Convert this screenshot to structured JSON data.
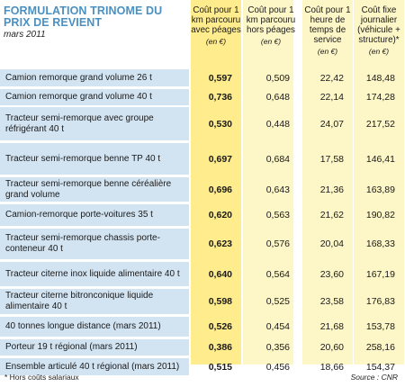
{
  "title": {
    "heading": "FORMULATION TRINOME DU PRIX DE REVIENT",
    "date": "mars 2011"
  },
  "columns": [
    {
      "label": "Coût pour 1 km parcouru avec péages",
      "unit": "(en €)"
    },
    {
      "label": "Coût pour 1 km parcouru hors péages",
      "unit": "(en €)"
    },
    {
      "label": "Coût pour 1 heure de temps de service",
      "unit": "(en €)"
    },
    {
      "label": "Coût fixe journalier (véhicule + structure)*",
      "unit": "(en €)"
    }
  ],
  "rows": [
    {
      "label": "Camion remorque grand volume 26 t",
      "values": [
        "0,597",
        "0,509",
        "22,42",
        "148,48"
      ]
    },
    {
      "label": "Camion remorque grand volume 40 t",
      "values": [
        "0,736",
        "0,648",
        "22,14",
        "174,28"
      ]
    },
    {
      "label": "Tracteur semi-remorque avec groupe réfrigérant 40 t",
      "values": [
        "0,530",
        "0,448",
        "24,07",
        "217,52"
      ]
    },
    {
      "label": "Tracteur semi-remorque benne TP 40 t",
      "values": [
        "0,697",
        "0,684",
        "17,58",
        "146,41"
      ]
    },
    {
      "label": "Tracteur semi-remorque benne céréalière grand volume",
      "values": [
        "0,696",
        "0,643",
        "21,36",
        "163,89"
      ]
    },
    {
      "label": "Camion-remorque porte-voitures 35 t",
      "values": [
        "0,620",
        "0,563",
        "21,62",
        "190,82"
      ]
    },
    {
      "label": "Tracteur semi-remorque chassis porte-conteneur 40 t",
      "values": [
        "0,623",
        "0,576",
        "20,04",
        "168,33"
      ]
    },
    {
      "label": "Tracteur citerne inox liquide alimentaire 40 t",
      "values": [
        "0,640",
        "0,564",
        "23,60",
        "167,19"
      ]
    },
    {
      "label": "Tracteur citerne bitronconique liquide alimentaire 40 t",
      "values": [
        "0,598",
        "0,525",
        "23,58",
        "176,83"
      ]
    },
    {
      "label": "40 tonnes longue distance (mars 2011)",
      "values": [
        "0,526",
        "0,454",
        "21,68",
        "153,78"
      ]
    },
    {
      "label": "Porteur 19 t régional (mars 2011)",
      "values": [
        "0,386",
        "0,356",
        "20,60",
        "258,16"
      ]
    },
    {
      "label": "Ensemble articulé 40 t régional (mars 2011)",
      "values": [
        "0,515",
        "0,456",
        "18,66",
        "154,37"
      ]
    }
  ],
  "footnote": "* Hors coûts salariaux",
  "source": "Source : CNR"
}
